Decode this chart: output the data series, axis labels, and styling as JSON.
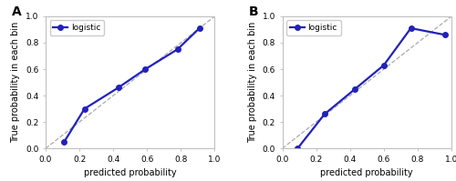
{
  "plot_A": {
    "label": "A",
    "x": [
      0.11,
      0.23,
      0.43,
      0.59,
      0.78,
      0.91
    ],
    "y": [
      0.05,
      0.3,
      0.46,
      0.6,
      0.75,
      0.91
    ],
    "line_color": "#2222bb",
    "line_width": 1.6,
    "marker": "o",
    "marker_size": 4,
    "legend_label": "logistic",
    "xlabel": "predicted probability",
    "ylabel": "True probability in each bin",
    "xlim": [
      0.0,
      1.0
    ],
    "ylim": [
      0.0,
      1.0
    ],
    "xticks": [
      0.0,
      0.2,
      0.4,
      0.6,
      0.8,
      1.0
    ],
    "yticks": [
      0.0,
      0.2,
      0.4,
      0.6,
      0.8,
      1.0
    ]
  },
  "plot_B": {
    "label": "B",
    "x": [
      0.09,
      0.25,
      0.43,
      0.6,
      0.76,
      0.96
    ],
    "y": [
      0.0,
      0.26,
      0.45,
      0.63,
      0.91,
      0.86
    ],
    "line_color": "#2222bb",
    "line_width": 1.6,
    "marker": "o",
    "marker_size": 4,
    "legend_label": "logistic",
    "xlabel": "predicted probability",
    "ylabel": "True probability in each bin",
    "xlim": [
      0.0,
      1.0
    ],
    "ylim": [
      0.0,
      1.0
    ],
    "xticks": [
      0.0,
      0.2,
      0.4,
      0.6,
      0.8,
      1.0
    ],
    "yticks": [
      0.0,
      0.2,
      0.4,
      0.6,
      0.8,
      1.0
    ]
  },
  "diag_color": "#aaaaaa",
  "diag_linestyle": "--",
  "diag_linewidth": 0.9,
  "label_fontsize": 7,
  "tick_fontsize": 6.5,
  "panel_label_fontsize": 10,
  "legend_fontsize": 6.5,
  "figure_facecolor": "#ffffff",
  "axes_facecolor": "#ffffff"
}
